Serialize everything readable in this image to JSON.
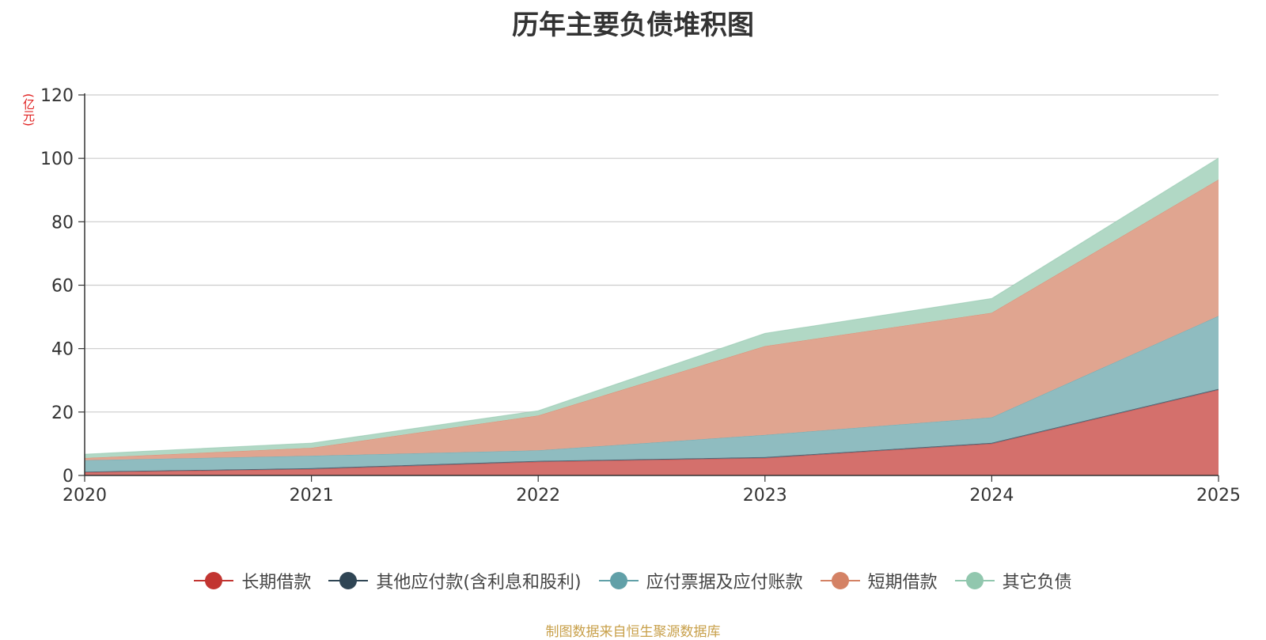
{
  "chart_data": {
    "type": "area",
    "stacked": true,
    "title": "历年主要负债堆积图",
    "unit_label": "(亿元)",
    "x": [
      "2020",
      "2021",
      "2022",
      "2023",
      "2024",
      "2025"
    ],
    "ylim": [
      0,
      120
    ],
    "yticks": [
      "0",
      "20",
      "40",
      "60",
      "80",
      "100",
      "120"
    ],
    "grid": true,
    "legend_position": "bottom",
    "series": [
      {
        "name": "长期借款",
        "color": "#c23531",
        "fill": "#d4706c",
        "values": [
          1.0,
          2.0,
          4.3,
          5.5,
          10.0,
          27.0
        ]
      },
      {
        "name": "其他应付款(含利息和股利)",
        "color": "#2f4554",
        "fill": "#5f7382",
        "values": [
          0.2,
          0.3,
          0.3,
          0.3,
          0.3,
          0.3
        ]
      },
      {
        "name": "应付票据及应付账款",
        "color": "#61a0a8",
        "fill": "#8fbcc0",
        "values": [
          3.6,
          3.9,
          3.3,
          7.0,
          8.0,
          23.0
        ]
      },
      {
        "name": "短期借款",
        "color": "#d48265",
        "fill": "#e0a590",
        "values": [
          0.7,
          2.5,
          11.0,
          28.0,
          33.0,
          43.0
        ]
      },
      {
        "name": "其它负债",
        "color": "#91c7ae",
        "fill": "#b1d8c5",
        "values": [
          1.2,
          1.5,
          1.5,
          4.0,
          4.5,
          6.8
        ]
      }
    ],
    "source": "制图数据来自恒生聚源数据库"
  }
}
